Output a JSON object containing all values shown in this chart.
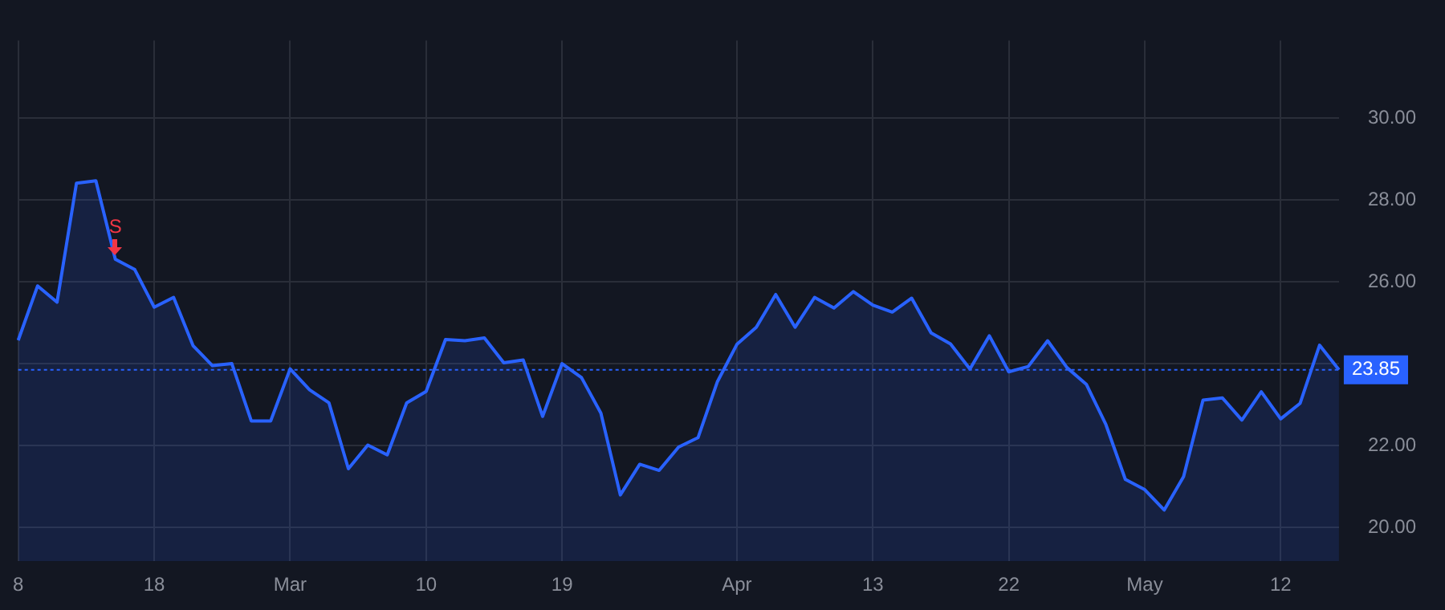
{
  "chart_data": {
    "type": "area",
    "categories": [
      "8",
      null,
      null,
      null,
      null,
      null,
      null,
      "18",
      null,
      null,
      null,
      null,
      null,
      null,
      "Mar",
      null,
      null,
      null,
      null,
      null,
      null,
      "10",
      null,
      null,
      null,
      null,
      null,
      null,
      "19",
      null,
      null,
      null,
      null,
      null,
      null,
      null,
      null,
      "Apr",
      null,
      null,
      null,
      null,
      null,
      null,
      "13",
      null,
      null,
      null,
      null,
      null,
      null,
      "22",
      null,
      null,
      null,
      null,
      null,
      null,
      "May",
      null,
      null,
      null,
      null,
      null,
      null,
      "12",
      null,
      null,
      null
    ],
    "series": [
      {
        "color": "#2962ff",
        "values": [
          24.57,
          25.9,
          25.5,
          28.41,
          28.47,
          26.55,
          26.3,
          25.38,
          25.62,
          24.44,
          23.95,
          24.0,
          22.6,
          22.6,
          23.87,
          23.36,
          23.04,
          21.43,
          22.01,
          21.77,
          23.04,
          23.32,
          24.59,
          24.56,
          24.63,
          24.02,
          24.09,
          22.71,
          24.0,
          23.66,
          22.79,
          20.79,
          21.54,
          21.39,
          21.96,
          22.19,
          23.56,
          24.47,
          24.89,
          25.69,
          24.89,
          25.62,
          25.36,
          25.76,
          25.43,
          25.26,
          25.6,
          24.75,
          24.48,
          23.87,
          24.68,
          23.8,
          23.93,
          24.56,
          23.9,
          23.49,
          22.51,
          21.17,
          20.92,
          20.42,
          21.24,
          23.11,
          23.16,
          22.62,
          23.31,
          22.65,
          23.03,
          24.45,
          23.85
        ]
      }
    ],
    "ylim": [
      19.17,
      31.9
    ],
    "yticks": [
      {
        "value": 20,
        "label": "20.00"
      },
      {
        "value": 22,
        "label": "22.00"
      },
      {
        "value": 24,
        "label": null
      },
      {
        "value": 26,
        "label": "26.00"
      },
      {
        "value": 28,
        "label": "28.00"
      },
      {
        "value": 30,
        "label": "30.00"
      }
    ],
    "ref_lines": [
      {
        "axis": "y",
        "value": 23.85,
        "label": "23.85",
        "color": "#2962ff",
        "line_style": "dotted"
      }
    ],
    "annotations": [
      {
        "text": "S",
        "y": 26.55
      }
    ],
    "grid": true,
    "legend": false,
    "marker": "none",
    "line_style": "solid"
  }
}
